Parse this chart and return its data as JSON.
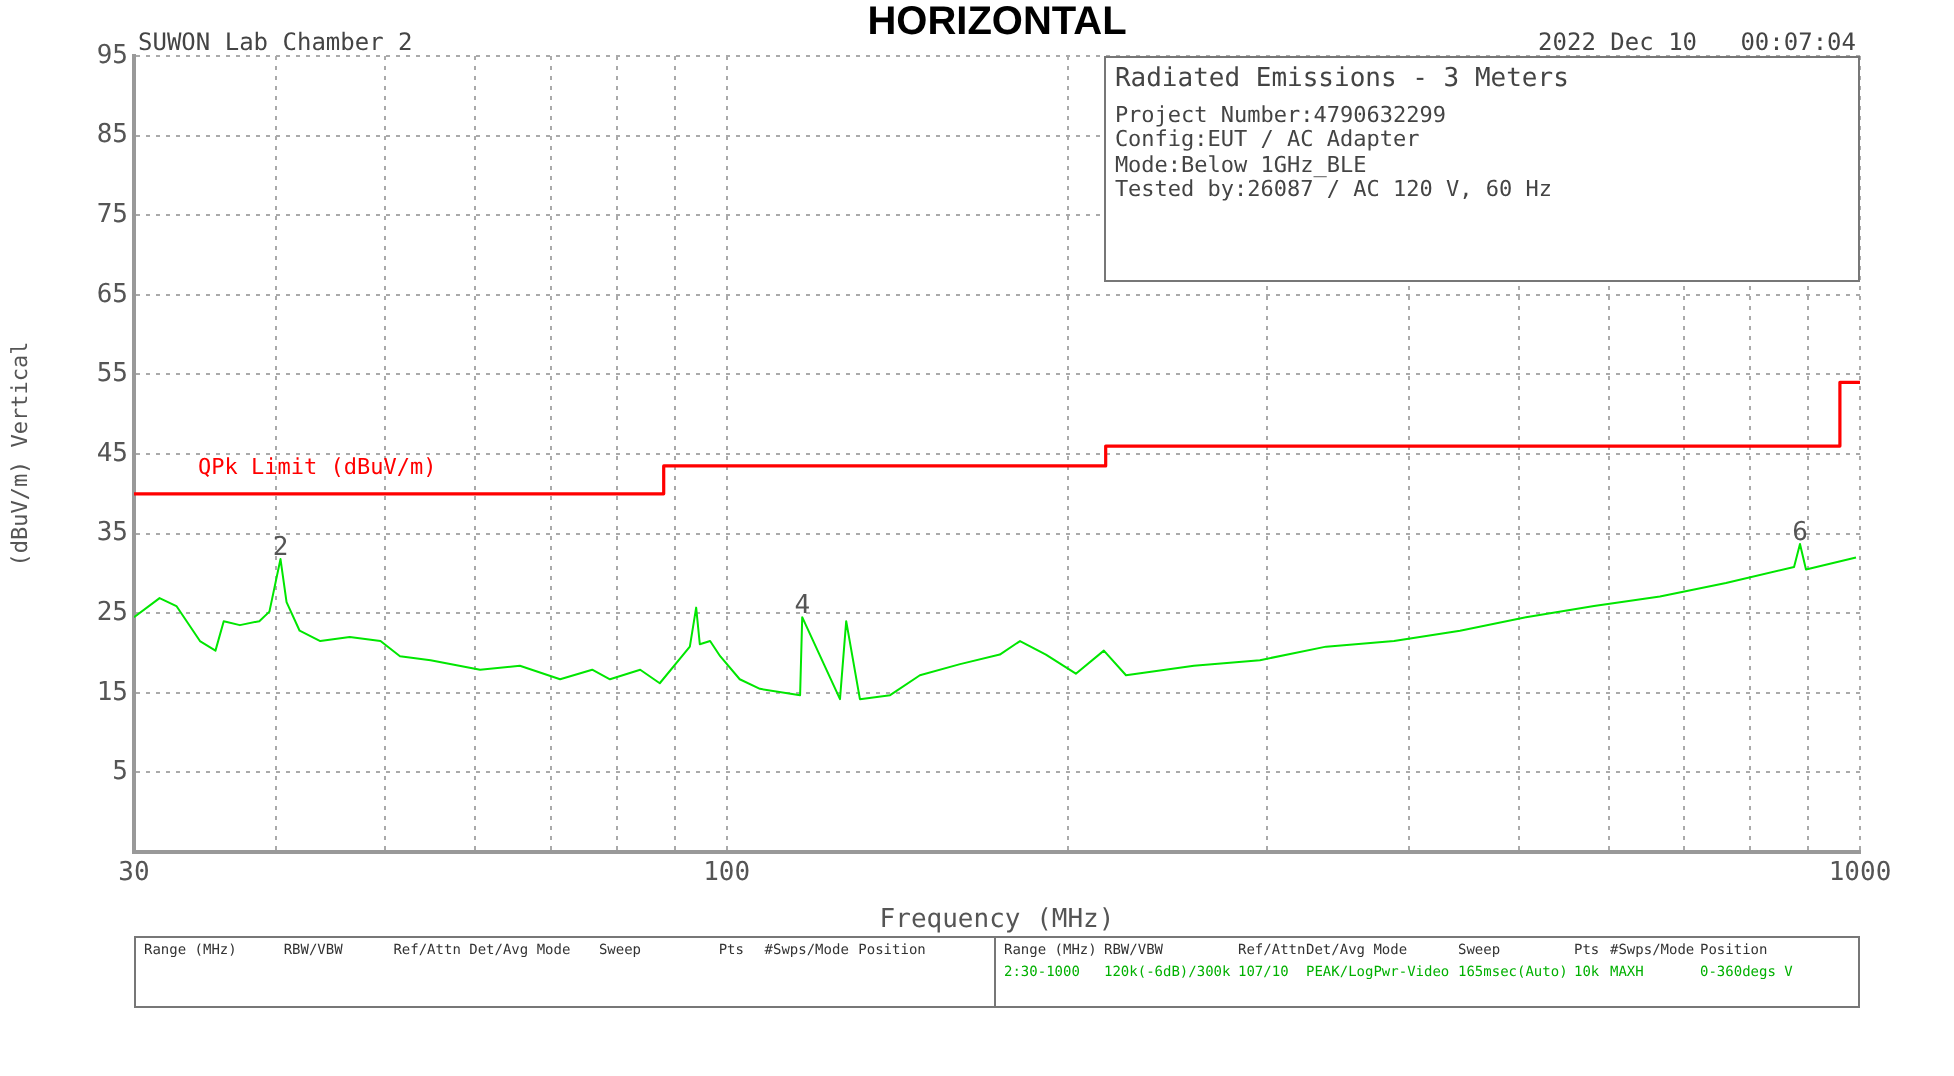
{
  "chart_data": {
    "type": "line",
    "title": "HORIZONTAL",
    "xlabel": "Frequency (MHz)",
    "ylabel": "(dBuV/m) Vertical",
    "log": "x",
    "grid": true,
    "xlim": [
      30,
      1000
    ],
    "xticks": [
      30,
      {
        "value": 40,
        "label": null
      },
      {
        "value": 50,
        "label": null
      },
      {
        "value": 60,
        "label": null
      },
      {
        "value": 70,
        "label": null
      },
      {
        "value": 80,
        "label": null
      },
      {
        "value": 90,
        "label": null
      },
      100,
      {
        "value": 200,
        "label": null
      },
      {
        "value": 300,
        "label": null
      },
      {
        "value": 400,
        "label": null
      },
      {
        "value": 500,
        "label": null
      },
      {
        "value": 600,
        "label": null
      },
      {
        "value": 700,
        "label": null
      },
      {
        "value": 800,
        "label": null
      },
      {
        "value": 900,
        "label": null
      },
      1000
    ],
    "ylim": [
      -5,
      95
    ],
    "yticks": [
      5,
      15,
      25,
      35,
      45,
      55,
      65,
      75,
      85,
      95
    ],
    "series": [
      {
        "type": "line",
        "color": "#00e600",
        "x": [
          30,
          31.6,
          32.7,
          34.3,
          35.4,
          36.0,
          37.2,
          38.7,
          39.5,
          40.4,
          40.9,
          42.0,
          43.8,
          46.5,
          49.5,
          51.5,
          54.8,
          60.6,
          65.7,
          71.3,
          76.1,
          78.9,
          83.9,
          87.3,
          92.8,
          94.0,
          94.7,
          96.7,
          98.7,
          102.7,
          107.0,
          116.1,
          116.6,
          125.9,
          127.5,
          131.1,
          139.4,
          148.1,
          160.7,
          174.2,
          181.5,
          191.3,
          203.3,
          215.2,
          225.1,
          258.4,
          295.5,
          338.0,
          388.0,
          443.7,
          507.3,
          582.5,
          666.0,
          761.6,
          874.6,
          885.2,
          896.1,
          991.9
        ],
        "values": [
          24.5,
          26.9,
          25.9,
          21.5,
          20.3,
          24.0,
          23.5,
          24.0,
          25.2,
          31.8,
          26.4,
          22.8,
          21.5,
          22.0,
          21.5,
          19.6,
          19.1,
          17.9,
          18.4,
          16.7,
          17.9,
          16.7,
          17.9,
          16.2,
          20.8,
          25.7,
          21.1,
          21.5,
          19.6,
          16.7,
          15.5,
          14.7,
          24.5,
          14.2,
          24.0,
          14.2,
          14.7,
          17.2,
          18.6,
          19.8,
          21.5,
          19.8,
          17.4,
          20.3,
          17.2,
          18.4,
          19.1,
          20.8,
          21.5,
          22.8,
          24.5,
          25.9,
          27.1,
          28.8,
          30.8,
          33.7,
          30.5,
          32.0
        ]
      },
      {
        "type": "line",
        "name": "QPk Limit (dBuV/m)",
        "color": "#ff0000",
        "x": [
          30,
          88,
          88,
          216,
          216,
          960,
          960,
          1000
        ],
        "values": [
          40,
          40,
          43.5,
          43.5,
          46,
          46,
          54,
          54
        ]
      }
    ],
    "annotations": [
      "SUWON Lab Chamber 2",
      "2022 Dec 10   00:07:04",
      "Radiated Emissions - 3 Meters",
      "Project Number:4790632299",
      "Config:EUT / AC Adapter",
      "Mode:Below 1GHz_BLE",
      "Tested by:26087 / AC 120 V, 60 Hz",
      {
        "text": "2",
        "x": 40.4,
        "y": 31.8
      },
      {
        "text": "4",
        "x": 116.6,
        "y": 24.5
      },
      {
        "text": "6",
        "x": 885.2,
        "y": 33.7
      },
      "Range (MHz)",
      "RBW/VBW",
      "Ref/Attn",
      "Det/Avg Mode",
      "Sweep",
      "Pts",
      "#Swps/Mode",
      "Position",
      "Range (MHz)",
      "RBW/VBW",
      "Ref/Attn",
      "Det/Avg Mode",
      "Sweep",
      "Pts",
      "#Swps/Mode",
      "Position",
      "2:30-1000",
      "120k(-6dB)/300k",
      "107/10",
      "PEAK/LogPwr-Video",
      "165msec(Auto)",
      "10k",
      "MAXH",
      "0-360degs V"
    ]
  }
}
